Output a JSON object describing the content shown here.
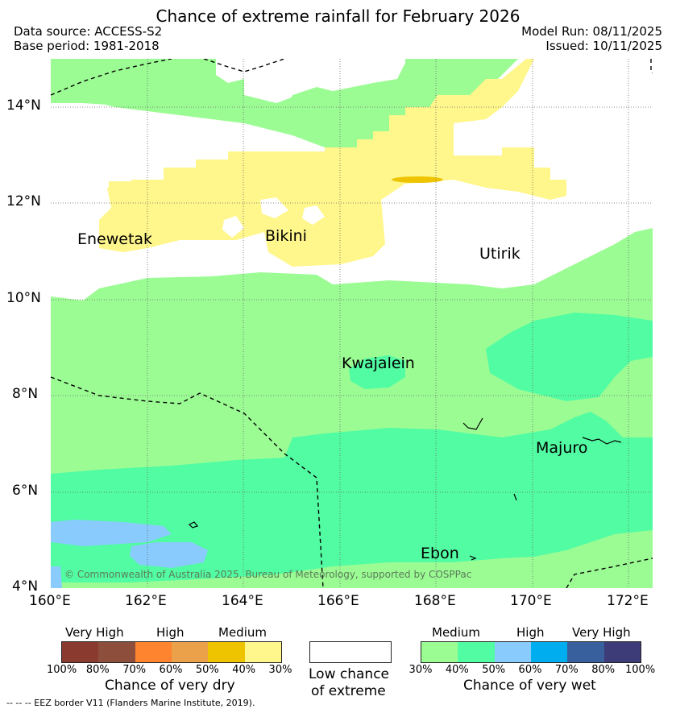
{
  "title": "Chance of extreme rainfall for February 2026",
  "header": {
    "data_source": "Data source: ACCESS-S2",
    "base_period": "Base period: 1981-2018",
    "model_run": "Model Run: 08/11/2025",
    "issued": "Issued: 10/11/2025"
  },
  "map": {
    "lat_labels": [
      "14°N",
      "12°N",
      "10°N",
      "8°N",
      "6°N",
      "4°N"
    ],
    "lon_labels": [
      "160°E",
      "162°E",
      "164°E",
      "166°E",
      "168°E",
      "170°E",
      "172°E"
    ],
    "places": {
      "enewetak": "Enewetak",
      "bikini": "Bikini",
      "utirik": "Utirik",
      "kwajalein": "Kwajalein",
      "majuro": "Majuro",
      "ebon": "Ebon"
    },
    "copyright": "© Commonwealth of Australia 2025, Bureau of Meteorology, supported by COSPPac"
  },
  "legend": {
    "dry": {
      "levels": [
        "Very High",
        "High",
        "Medium"
      ],
      "percents": [
        "100%",
        "80%",
        "70%",
        "60%",
        "50%",
        "40%",
        "30%"
      ],
      "colors": [
        "#8b3a30",
        "#8d4e3c",
        "#ff8430",
        "#eba04a",
        "#eec400",
        "#fff68c"
      ],
      "caption": "Chance of very dry"
    },
    "neutral": {
      "line1": "Low chance",
      "line2": "of extreme",
      "color": "#ffffff"
    },
    "wet": {
      "levels": [
        "Medium",
        "High",
        "Very High"
      ],
      "percents": [
        "30%",
        "40%",
        "50%",
        "60%",
        "70%",
        "80%",
        "100%"
      ],
      "colors": [
        "#9cfc94",
        "#52fca2",
        "#88cbfc",
        "#00aef0",
        "#38609c",
        "#3e3c78"
      ],
      "caption": "Chance of very wet"
    }
  },
  "footer": "--  --  -- EEZ border V11 (Flanders Marine Institute, 2019)."
}
